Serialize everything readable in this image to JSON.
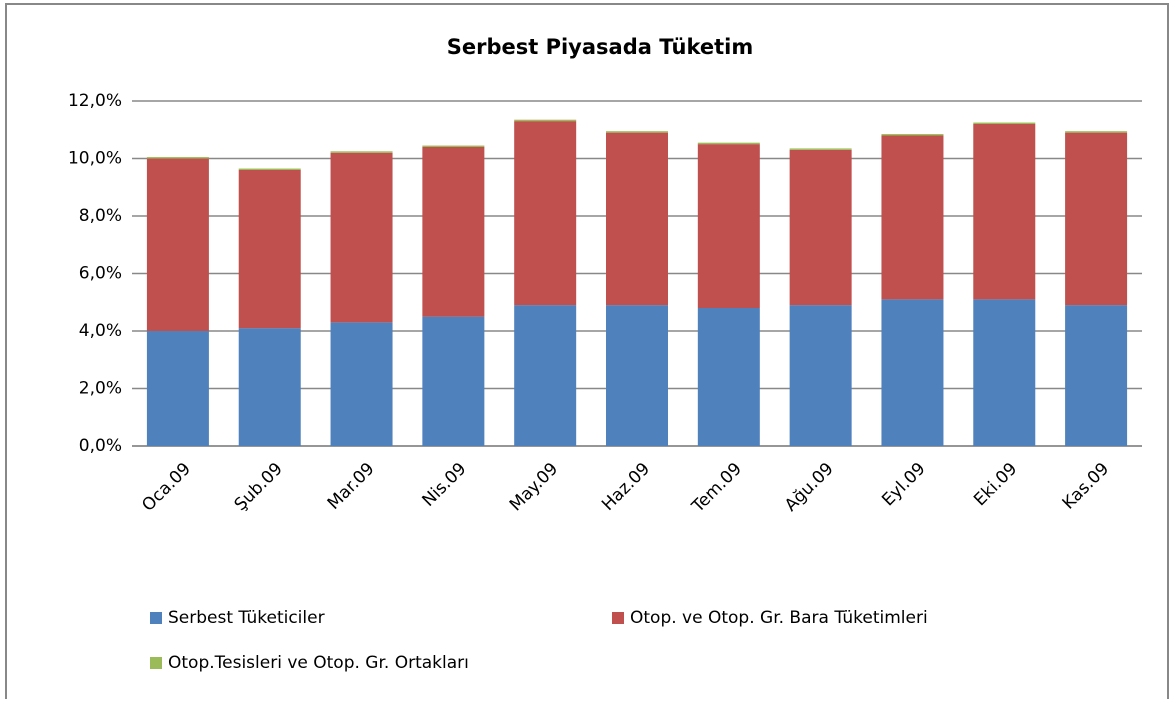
{
  "chart_data": {
    "type": "stacked_bar",
    "title": "Serbest Piyasada Tüketim",
    "categories": [
      "Oca.09",
      "Şub.09",
      "Mar.09",
      "Nis.09",
      "May.09",
      "Haz.09",
      "Tem.09",
      "Ağu.09",
      "Eyl.09",
      "Eki.09",
      "Kas.09"
    ],
    "series": [
      {
        "name": "Serbest Tüketiciler",
        "color": "#4f81bd",
        "values": [
          4.0,
          4.1,
          4.3,
          4.5,
          4.9,
          4.9,
          4.8,
          4.9,
          5.1,
          5.1,
          4.9
        ]
      },
      {
        "name": "Otop. ve Otop. Gr. Bara Tüketimleri",
        "color": "#c0504d",
        "values": [
          6.0,
          5.5,
          5.9,
          5.9,
          6.4,
          6.0,
          5.7,
          5.4,
          5.7,
          6.1,
          6.0
        ]
      },
      {
        "name": "Otop.Tesisleri ve Otop. Gr. Ortakları",
        "color": "#9bbb59",
        "values": [
          0.05,
          0.05,
          0.05,
          0.05,
          0.05,
          0.05,
          0.05,
          0.05,
          0.05,
          0.05,
          0.05
        ]
      }
    ],
    "ylim": [
      0,
      12
    ],
    "yticks": [
      {
        "value": 0,
        "label": "0,0%"
      },
      {
        "value": 2,
        "label": "2,0%"
      },
      {
        "value": 4,
        "label": "4,0%"
      },
      {
        "value": 6,
        "label": "6,0%"
      },
      {
        "value": 8,
        "label": "8,0%"
      },
      {
        "value": 10,
        "label": "10,0%"
      },
      {
        "value": 12,
        "label": "12,0%"
      }
    ],
    "grid": true
  }
}
